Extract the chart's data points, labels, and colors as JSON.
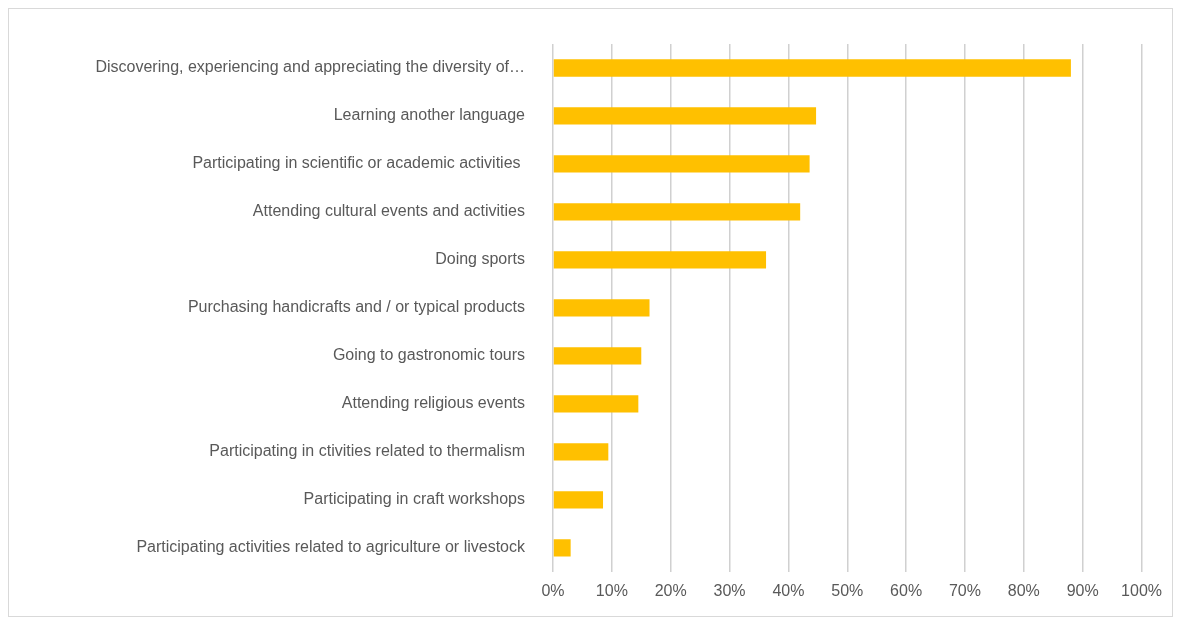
{
  "chart_data": {
    "type": "bar",
    "orientation": "horizontal",
    "categories": [
      "Discovering, experiencing and appreciating the diversity of…",
      "Learning another language",
      "Participating in scientific or academic activities ",
      "Attending cultural events and activities",
      "Doing sports",
      "Purchasing handicrafts and / or typical products",
      "Going to gastronomic tours",
      "Attending religious events",
      "Participating in ctivities related to thermalism",
      "Participating in craft workshops",
      "Participating activities related to agriculture or livestock"
    ],
    "values": [
      88,
      44.7,
      43.6,
      42,
      36.2,
      16.4,
      15,
      14.5,
      9.4,
      8.5,
      3
    ],
    "color": "#ffc000",
    "xlim": [
      0,
      100
    ],
    "xticks": [
      {
        "value": 0,
        "label": "0%"
      },
      {
        "value": 10,
        "label": "10%"
      },
      {
        "value": 20,
        "label": "20%"
      },
      {
        "value": 30,
        "label": "30%"
      },
      {
        "value": 40,
        "label": "40%"
      },
      {
        "value": 50,
        "label": "50%"
      },
      {
        "value": 60,
        "label": "60%"
      },
      {
        "value": 70,
        "label": "70%"
      },
      {
        "value": 80,
        "label": "80%"
      },
      {
        "value": 90,
        "label": "90%"
      },
      {
        "value": 100,
        "label": "100%"
      }
    ],
    "grid": "x",
    "legend": false
  }
}
